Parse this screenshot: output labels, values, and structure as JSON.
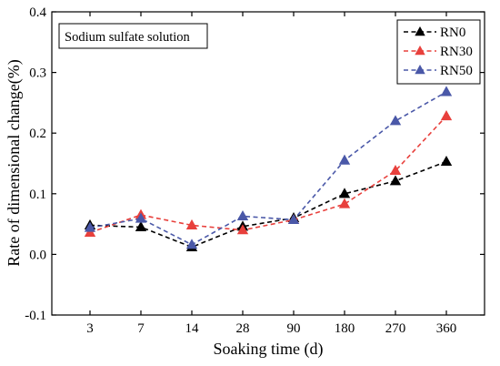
{
  "chart_data": {
    "type": "line",
    "title": "",
    "xlabel": "Soaking time (d)",
    "ylabel": "Rate of dimensional change(%)",
    "annotation": "Sodium sulfate solution",
    "categories": [
      "3",
      "7",
      "14",
      "28",
      "90",
      "180",
      "270",
      "360"
    ],
    "ylim": [
      -0.1,
      0.4
    ],
    "yticks": [
      "-0.1",
      "0.0",
      "0.1",
      "0.2",
      "0.3",
      "0.4"
    ],
    "legend_position": "top-right",
    "grid": false,
    "series": [
      {
        "name": "RN0",
        "color": "#000000",
        "marker": "triangle",
        "line": "dashed",
        "values": [
          0.048,
          0.045,
          0.012,
          0.046,
          0.06,
          0.1,
          0.121,
          0.153
        ]
      },
      {
        "name": "RN30",
        "color": "#e8403c",
        "marker": "triangle",
        "line": "dashed",
        "values": [
          0.036,
          0.065,
          0.048,
          0.04,
          0.057,
          0.083,
          0.138,
          0.228
        ]
      },
      {
        "name": "RN50",
        "color": "#4a58a8",
        "marker": "triangle",
        "line": "dashed",
        "values": [
          0.044,
          0.059,
          0.016,
          0.063,
          0.057,
          0.155,
          0.22,
          0.268
        ]
      }
    ]
  }
}
